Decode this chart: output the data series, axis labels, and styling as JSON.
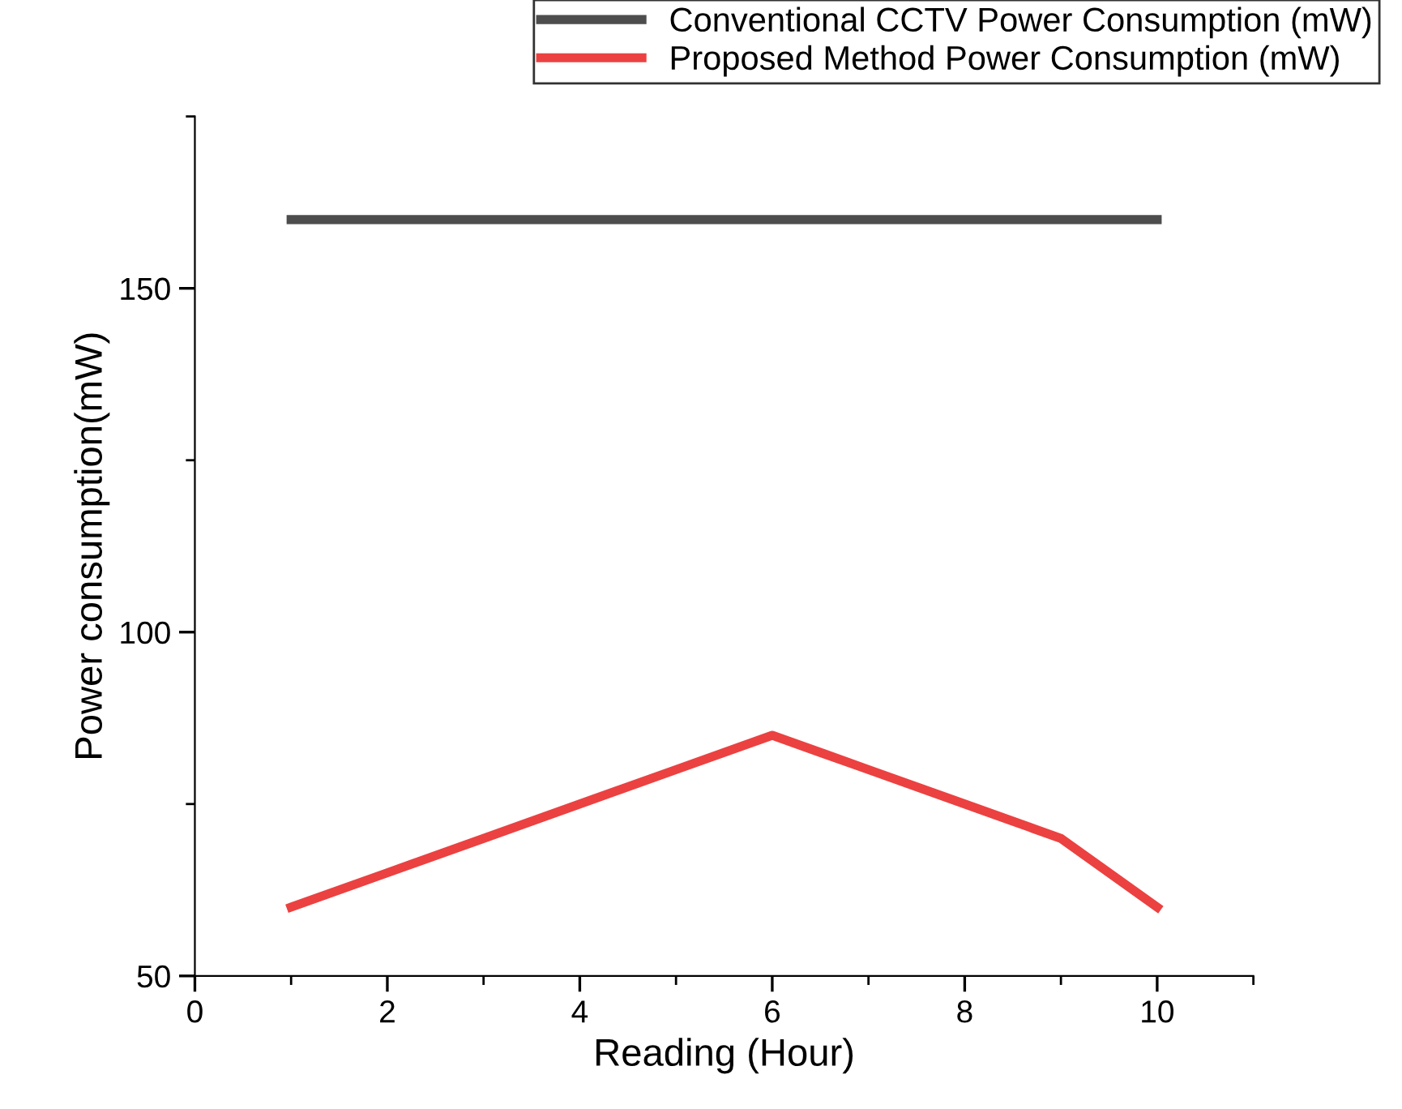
{
  "chart_data": {
    "type": "line",
    "xlabel": "Reading (Hour)",
    "ylabel": "Power consumption(mW)",
    "xlim": [
      0,
      11
    ],
    "xticks": [
      0,
      2,
      4,
      6,
      8,
      10
    ],
    "ylim": [
      50,
      175
    ],
    "yticks": [
      50,
      100,
      150
    ],
    "grid": false,
    "legend": "top right",
    "marker": "none",
    "line_style": "solid",
    "series": [
      {
        "name": "Conventional CCTV Power Consumption (mW)",
        "color": "#4d4d4d",
        "x": [
          1,
          2,
          3,
          4,
          5,
          6,
          7,
          8,
          9,
          10
        ],
        "values": [
          160,
          160,
          160,
          160,
          160,
          160,
          160,
          160,
          160,
          160
        ]
      },
      {
        "name": "Proposed Method Power Consumption (mW)",
        "color": "#ec4141",
        "x": [
          1,
          2,
          3,
          4,
          5,
          6,
          7,
          8,
          9,
          10
        ],
        "values": [
          60,
          65,
          70,
          75,
          80,
          85,
          80,
          75,
          70,
          60
        ]
      }
    ]
  }
}
